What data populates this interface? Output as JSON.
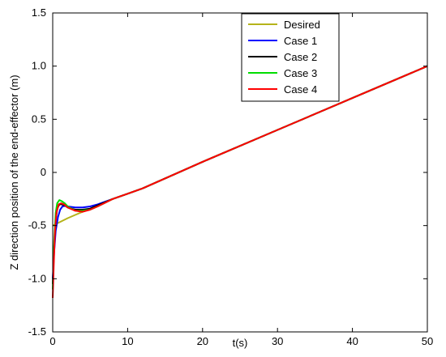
{
  "chart_data": {
    "type": "line",
    "title": "",
    "xlabel": "t(s)",
    "ylabel": "Z direction position of the end-effector (m)",
    "xlim": [
      0,
      50
    ],
    "ylim": [
      -1.5,
      1.5
    ],
    "xticks": [
      0,
      10,
      20,
      30,
      40,
      50
    ],
    "yticks": [
      -1.5,
      -1.0,
      -0.5,
      0,
      0.5,
      1.0,
      1.5
    ],
    "xtick_labels": [
      "0",
      "10",
      "20",
      "30",
      "40",
      "50"
    ],
    "ytick_labels": [
      "-1.5",
      "-1.0",
      "-0.5",
      "0",
      "0.5",
      "1.0",
      "1.5"
    ],
    "grid": false,
    "legend_position": "top-center",
    "series": [
      {
        "name": "Desired",
        "color": "#b5b31a",
        "x": [
          0,
          0.3,
          0.6,
          1,
          2,
          3,
          4,
          6,
          8,
          10,
          12,
          20,
          30,
          40,
          50
        ],
        "y": [
          -0.5,
          -0.49,
          -0.48,
          -0.465,
          -0.43,
          -0.4,
          -0.37,
          -0.31,
          -0.25,
          -0.2,
          -0.15,
          0.1,
          0.4,
          0.7,
          1.0
        ]
      },
      {
        "name": "Case 1",
        "color": "#0000ff",
        "x": [
          0,
          0.2,
          0.4,
          0.7,
          1,
          1.3,
          1.6,
          2,
          3,
          4,
          5,
          6,
          8,
          10,
          12,
          20,
          30,
          40,
          50
        ],
        "y": [
          -1.0,
          -0.75,
          -0.55,
          -0.42,
          -0.35,
          -0.32,
          -0.315,
          -0.32,
          -0.33,
          -0.33,
          -0.32,
          -0.3,
          -0.25,
          -0.2,
          -0.15,
          0.1,
          0.4,
          0.7,
          1.0
        ]
      },
      {
        "name": "Case 2",
        "color": "#000000",
        "x": [
          0,
          0.2,
          0.4,
          0.6,
          0.9,
          1.2,
          1.6,
          2,
          3,
          4,
          5,
          6,
          8,
          10,
          12,
          20,
          30,
          40,
          50
        ],
        "y": [
          -1.05,
          -0.7,
          -0.45,
          -0.34,
          -0.3,
          -0.3,
          -0.31,
          -0.33,
          -0.35,
          -0.35,
          -0.34,
          -0.31,
          -0.25,
          -0.2,
          -0.15,
          0.1,
          0.4,
          0.7,
          1.0
        ]
      },
      {
        "name": "Case 3",
        "color": "#00dd00",
        "x": [
          0,
          0.2,
          0.4,
          0.6,
          0.9,
          1.2,
          1.6,
          2,
          3,
          4,
          5,
          6,
          8,
          10,
          12,
          20,
          30,
          40,
          50
        ],
        "y": [
          -1.1,
          -0.65,
          -0.38,
          -0.29,
          -0.26,
          -0.27,
          -0.29,
          -0.32,
          -0.36,
          -0.36,
          -0.35,
          -0.32,
          -0.25,
          -0.2,
          -0.15,
          0.1,
          0.4,
          0.7,
          1.0
        ]
      },
      {
        "name": "Case 4",
        "color": "#ff0000",
        "x": [
          0,
          0.15,
          0.3,
          0.5,
          0.8,
          1.1,
          1.5,
          2,
          3,
          4,
          5,
          6,
          8,
          10,
          12,
          20,
          30,
          40,
          50
        ],
        "y": [
          -1.18,
          -0.85,
          -0.55,
          -0.38,
          -0.3,
          -0.29,
          -0.3,
          -0.33,
          -0.36,
          -0.37,
          -0.35,
          -0.32,
          -0.25,
          -0.2,
          -0.15,
          0.1,
          0.4,
          0.7,
          1.0
        ]
      }
    ]
  }
}
